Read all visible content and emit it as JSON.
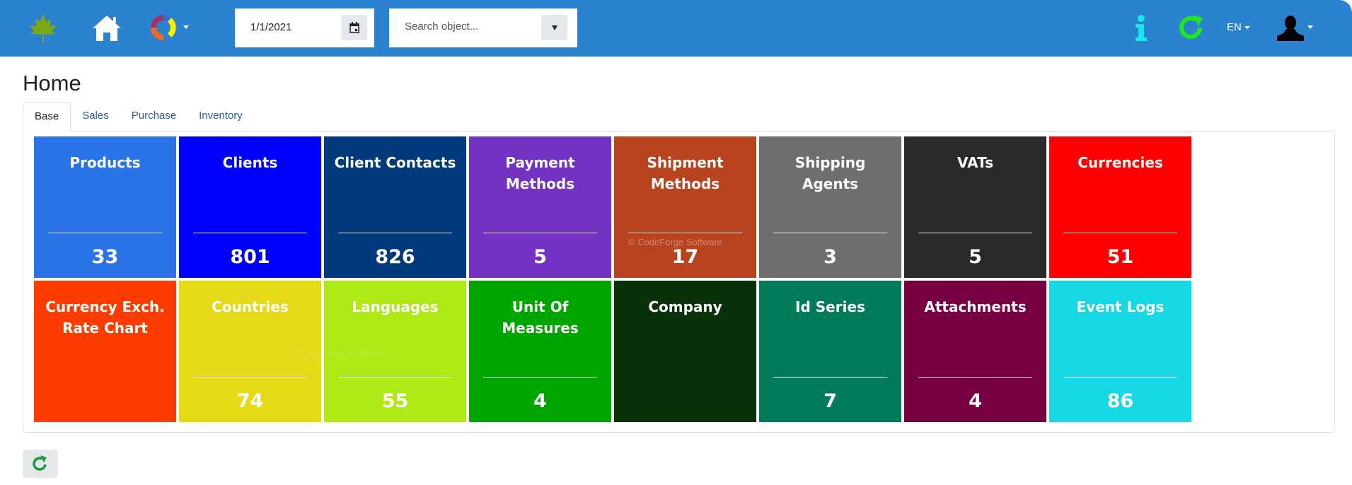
{
  "header": {
    "date_value": "1/1/2021",
    "search_placeholder": "Search object...",
    "language": "EN"
  },
  "page": {
    "title": "Home"
  },
  "tabs": [
    {
      "label": "Base",
      "active": true
    },
    {
      "label": "Sales"
    },
    {
      "label": "Purchase"
    },
    {
      "label": "Inventory"
    }
  ],
  "tiles": [
    {
      "title": "Products",
      "count": "33",
      "color": "#2a74e8"
    },
    {
      "title": "Clients",
      "count": "801",
      "color": "#0000ff"
    },
    {
      "title": "Client Contacts",
      "count": "826",
      "color": "#003a7a"
    },
    {
      "title": "Payment Methods",
      "count": "5",
      "color": "#7432c2"
    },
    {
      "title": "Shipment Methods",
      "count": "17",
      "color": "#b7441f"
    },
    {
      "title": "Shipping Agents",
      "count": "3",
      "color": "#6f6d6e"
    },
    {
      "title": "VATs",
      "count": "5",
      "color": "#2b292a"
    },
    {
      "title": "Currencies",
      "count": "51",
      "color": "#ff0000"
    },
    {
      "title": "Currency Exch. Rate Chart",
      "count": "",
      "color": "#ff3c00"
    },
    {
      "title": "Countries",
      "count": "74",
      "color": "#e5d918"
    },
    {
      "title": "Languages",
      "count": "55",
      "color": "#aee815"
    },
    {
      "title": "Unit Of Measures",
      "count": "4",
      "color": "#00a600"
    },
    {
      "title": "Company",
      "count": "",
      "color": "#0a320a"
    },
    {
      "title": "Id Series",
      "count": "7",
      "color": "#007c5b"
    },
    {
      "title": "Attachments",
      "count": "4",
      "color": "#780042"
    },
    {
      "title": "Event Logs",
      "count": "86",
      "color": "#15d8e4"
    }
  ],
  "watermark": "© CodeForge Software"
}
